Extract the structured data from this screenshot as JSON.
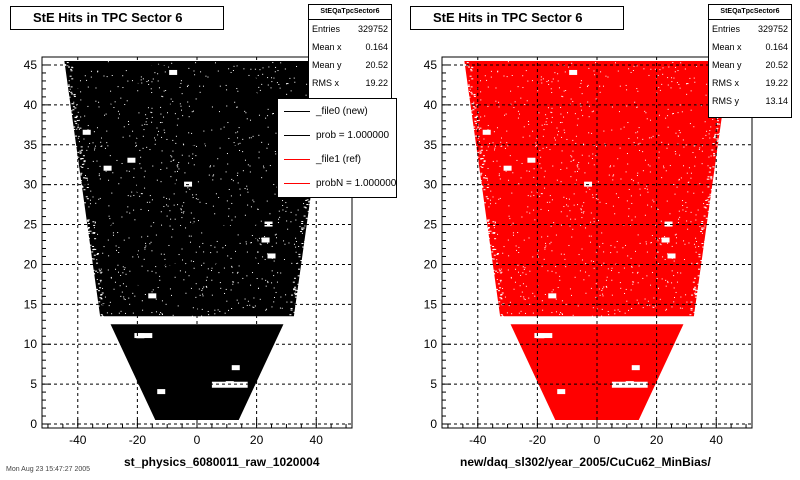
{
  "footer_text": "Mon Aug 23 15:47:27 2005",
  "panels": [
    {
      "title": "StE Hits in TPC Sector 6",
      "hist_color": "#000000",
      "stats": {
        "name": "StEQaTpcSector6",
        "rows": [
          {
            "label": "Entries",
            "value": "329752"
          },
          {
            "label": "Mean x",
            "value": "0.164"
          },
          {
            "label": "Mean y",
            "value": "20.52"
          },
          {
            "label": "RMS x",
            "value": "19.22"
          }
        ]
      },
      "legend": [
        {
          "label": "_file0 (new)",
          "color": "#000000"
        },
        {
          "label": "prob = 1.000000",
          "color": "#000000"
        },
        {
          "label": "_file1 (ref)",
          "color": "#ff0000"
        },
        {
          "label": "probN = 1.000000",
          "color": "#ff0000"
        }
      ],
      "xlabel": "st_physics_6080011_raw_1020004"
    },
    {
      "title": "StE Hits in TPC Sector 6",
      "hist_color": "#ff0000",
      "stats": {
        "name": "StEQaTpcSector6",
        "rows": [
          {
            "label": "Entries",
            "value": "329752"
          },
          {
            "label": "Mean x",
            "value": "0.164"
          },
          {
            "label": "Mean y",
            "value": "20.52"
          },
          {
            "label": "RMS x",
            "value": "19.22"
          },
          {
            "label": "RMS y",
            "value": "13.14"
          }
        ]
      },
      "legend": [],
      "xlabel": "new/daq_sl302/year_2005/CuCu62_MinBias/"
    }
  ],
  "chart_data": [
    {
      "type": "scatter",
      "title": "StE Hits in TPC Sector 6",
      "xlabel": "st_physics_6080011_raw_1020004",
      "ylabel": "",
      "xlim": [
        -52,
        52
      ],
      "ylim": [
        -0.5,
        46
      ],
      "x_ticks": [
        -40,
        -20,
        0,
        20,
        40
      ],
      "y_ticks": [
        0,
        5,
        10,
        15,
        20,
        25,
        30,
        35,
        40,
        45
      ],
      "grid": true,
      "series": [
        {
          "name": "_file0 (new)",
          "color": "#000000"
        }
      ],
      "shape": {
        "upper_region": {
          "y_range": [
            13.5,
            45.5
          ],
          "x_half_width_bottom": 33,
          "x_half_width_top": 45
        },
        "lower_region": {
          "y_range": [
            0.5,
            12.5
          ],
          "x_half_width_bottom": 14,
          "x_half_width_top": 29
        },
        "gap_y": [
          12.5,
          13.5
        ]
      },
      "holes": [
        [
          -37,
          36.5
        ],
        [
          -30,
          32
        ],
        [
          -22,
          33
        ],
        [
          -3,
          30
        ],
        [
          -8,
          44
        ],
        [
          24,
          25
        ],
        [
          23,
          23
        ],
        [
          25,
          21
        ],
        [
          -15,
          16
        ],
        [
          -19,
          11
        ],
        [
          11,
          5
        ],
        [
          -12,
          4
        ],
        [
          13,
          7
        ]
      ]
    },
    {
      "type": "scatter",
      "title": "StE Hits in TPC Sector 6",
      "xlabel": "new/daq_sl302/year_2005/CuCu62_MinBias/",
      "ylabel": "",
      "xlim": [
        -52,
        52
      ],
      "ylim": [
        -0.5,
        46
      ],
      "x_ticks": [
        -40,
        -20,
        0,
        20,
        40
      ],
      "y_ticks": [
        0,
        5,
        10,
        15,
        20,
        25,
        30,
        35,
        40,
        45
      ],
      "grid": true,
      "series": [
        {
          "name": "_file1 (ref)",
          "color": "#ff0000"
        }
      ],
      "shape": {
        "upper_region": {
          "y_range": [
            13.5,
            45.5
          ],
          "x_half_width_bottom": 33,
          "x_half_width_top": 45
        },
        "lower_region": {
          "y_range": [
            0.5,
            12.5
          ],
          "x_half_width_bottom": 14,
          "x_half_width_top": 29
        },
        "gap_y": [
          12.5,
          13.5
        ]
      },
      "holes": [
        [
          -37,
          36.5
        ],
        [
          -30,
          32
        ],
        [
          -22,
          33
        ],
        [
          -3,
          30
        ],
        [
          -8,
          44
        ],
        [
          24,
          25
        ],
        [
          23,
          23
        ],
        [
          25,
          21
        ],
        [
          -15,
          16
        ],
        [
          -19,
          11
        ],
        [
          11,
          5
        ],
        [
          -12,
          4
        ],
        [
          13,
          7
        ]
      ]
    }
  ]
}
